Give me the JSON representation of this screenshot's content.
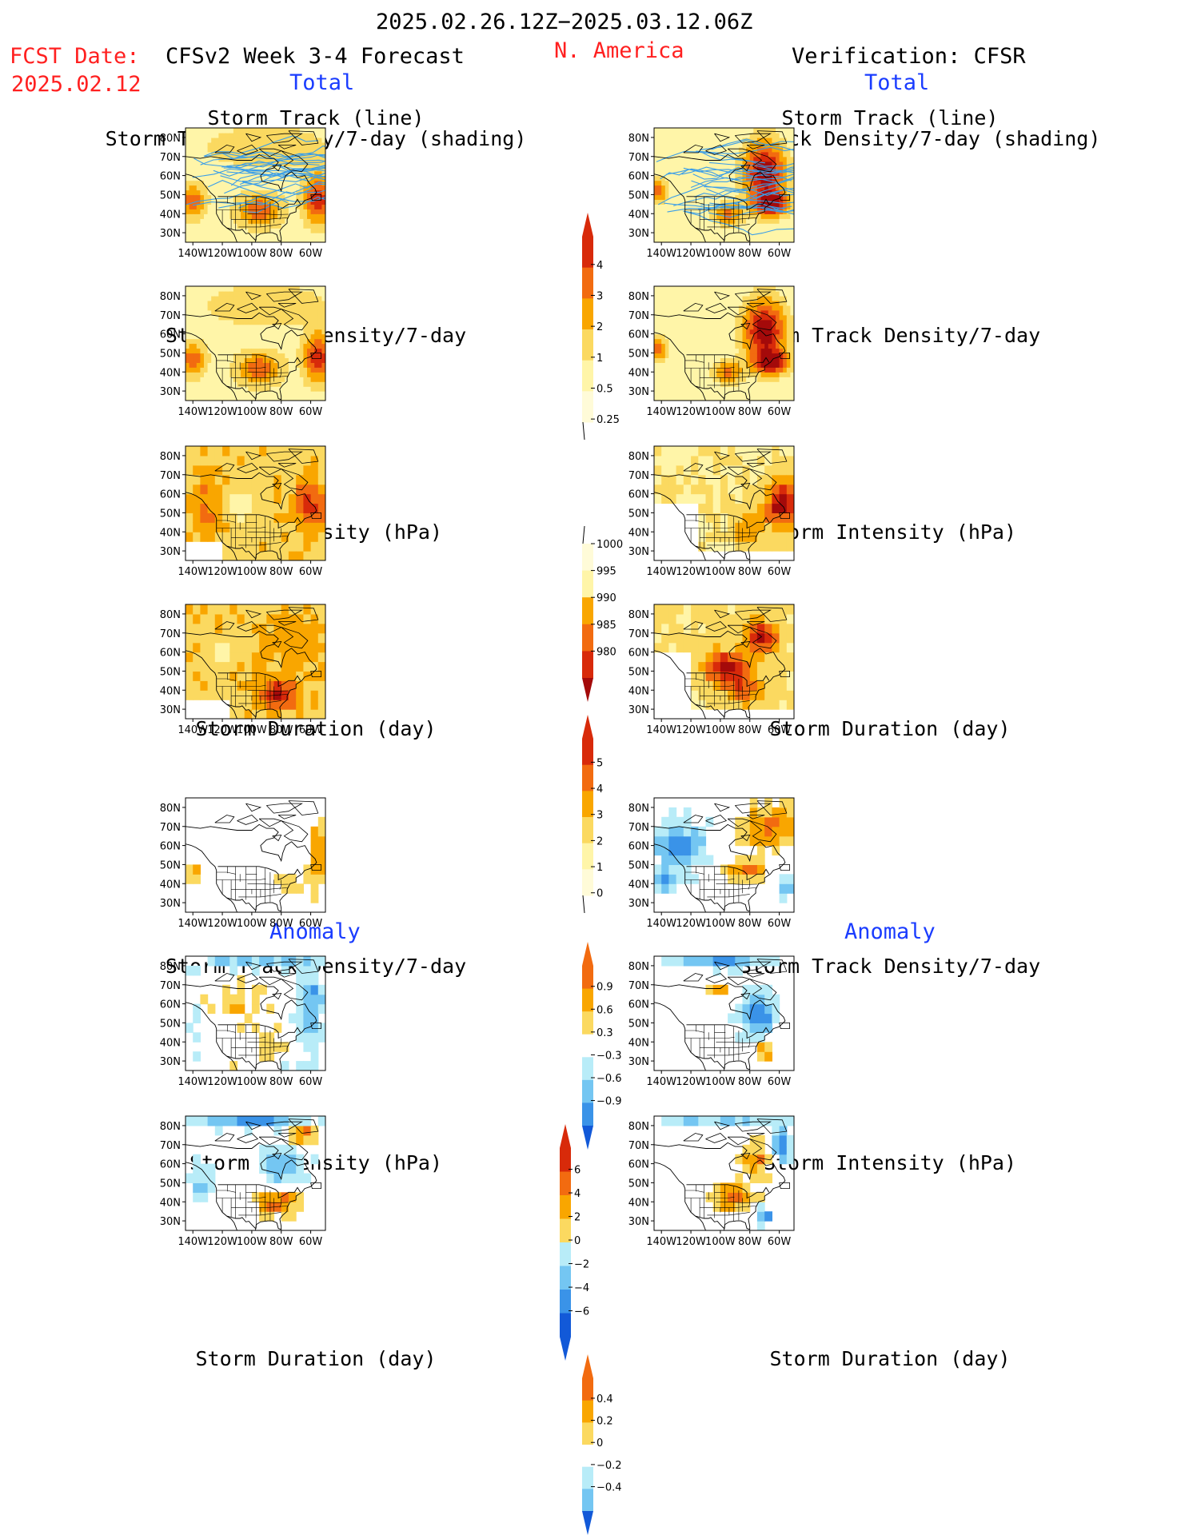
{
  "header": {
    "date_range": "2025.02.26.12Z−2025.03.12.06Z",
    "fcst_label": "FCST Date:",
    "fcst_date": "2025.02.12",
    "model": "CFSv2 Week 3-4 Forecast",
    "region": "N. America",
    "verification": "Verification: CFSR"
  },
  "sections": {
    "total_left": "Total",
    "total_right": "Total",
    "anomaly_left": "Anomaly",
    "anomaly_right": "Anomaly"
  },
  "panel_titles": {
    "track_line": "Storm Track (line)",
    "track_shading": "Storm Track Density/7-day (shading)",
    "density": "Storm Track Density/7-day",
    "intensity": "Storm Intensity (hPa)",
    "duration": "Storm Duration (day)"
  },
  "axes": {
    "lat_labels": [
      "80N",
      "70N",
      "60N",
      "50N",
      "40N",
      "30N"
    ],
    "lon_labels": [
      "140W",
      "120W",
      "100W",
      "80W",
      "60W"
    ]
  },
  "colorbars": {
    "density_total": [
      "4",
      "3",
      "2",
      "1",
      "0.5",
      "0.25"
    ],
    "intensity_total": [
      "1000",
      "995",
      "990",
      "985",
      "980"
    ],
    "duration_total": [
      "5",
      "4",
      "3",
      "2",
      "1",
      "0"
    ],
    "density_anom": [
      "0.9",
      "0.6",
      "0.3",
      "−0.3",
      "−0.6",
      "−0.9"
    ],
    "intensity_anom": [
      "6",
      "4",
      "2",
      "0",
      "−2",
      "−4",
      "−6"
    ],
    "duration_anom": [
      "0.4",
      "0.2",
      "0",
      "−0.2",
      "−0.4"
    ]
  },
  "colors": {
    "pale_yellow": "#fff5a8",
    "yellow": "#fbd960",
    "orange": "#f9a600",
    "dark_orange": "#f26b10",
    "red": "#d82a0a",
    "dark_red": "#a40a0a",
    "light_blue": "#b8ecf8",
    "mid_blue": "#74c6f2",
    "blue": "#3a93e8",
    "dark_blue": "#1259d8",
    "track_line": "#3b9ee8"
  }
}
